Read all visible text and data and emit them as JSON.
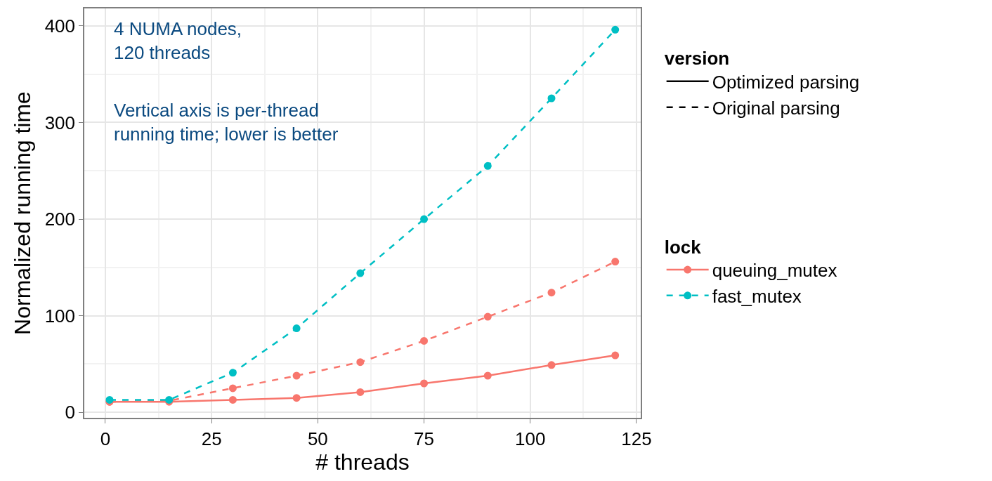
{
  "chart_data": {
    "type": "line",
    "xlabel": "# threads",
    "ylabel": "Normalized running time",
    "annotations": [
      "4 NUMA nodes,\n120 threads",
      "Vertical axis is per-thread\nrunning time; lower is better",
      "Optimized parsing",
      "Original parsing"
    ],
    "x": [
      1,
      15,
      30,
      45,
      60,
      75,
      90,
      105,
      120
    ],
    "series": [
      {
        "name": "queuing_mutex",
        "color": "#f8766d",
        "line_style": "solid",
        "values": [
          11,
          11,
          13,
          15,
          21,
          30,
          38,
          49,
          59
        ]
      },
      {
        "color": "#f8766d",
        "line_style": "dashed",
        "values": [
          11,
          12,
          25,
          38,
          52,
          74,
          99,
          124,
          156
        ]
      },
      {
        "name": "fast_mutex",
        "color": "#00bfc4",
        "line_style": "dashed",
        "values": [
          13,
          13,
          41,
          87,
          144,
          200,
          255,
          325,
          396
        ]
      }
    ],
    "legend_title": [
      "version",
      "lock"
    ],
    "legend": "right",
    "marker": "circle",
    "grid": true,
    "xlim": [
      -4.95,
      126
    ],
    "xticks": [
      0,
      25,
      50,
      75,
      100,
      125
    ],
    "ylim": [
      -5.6,
      418
    ],
    "yticks": [
      0,
      100,
      200,
      300,
      400
    ]
  }
}
